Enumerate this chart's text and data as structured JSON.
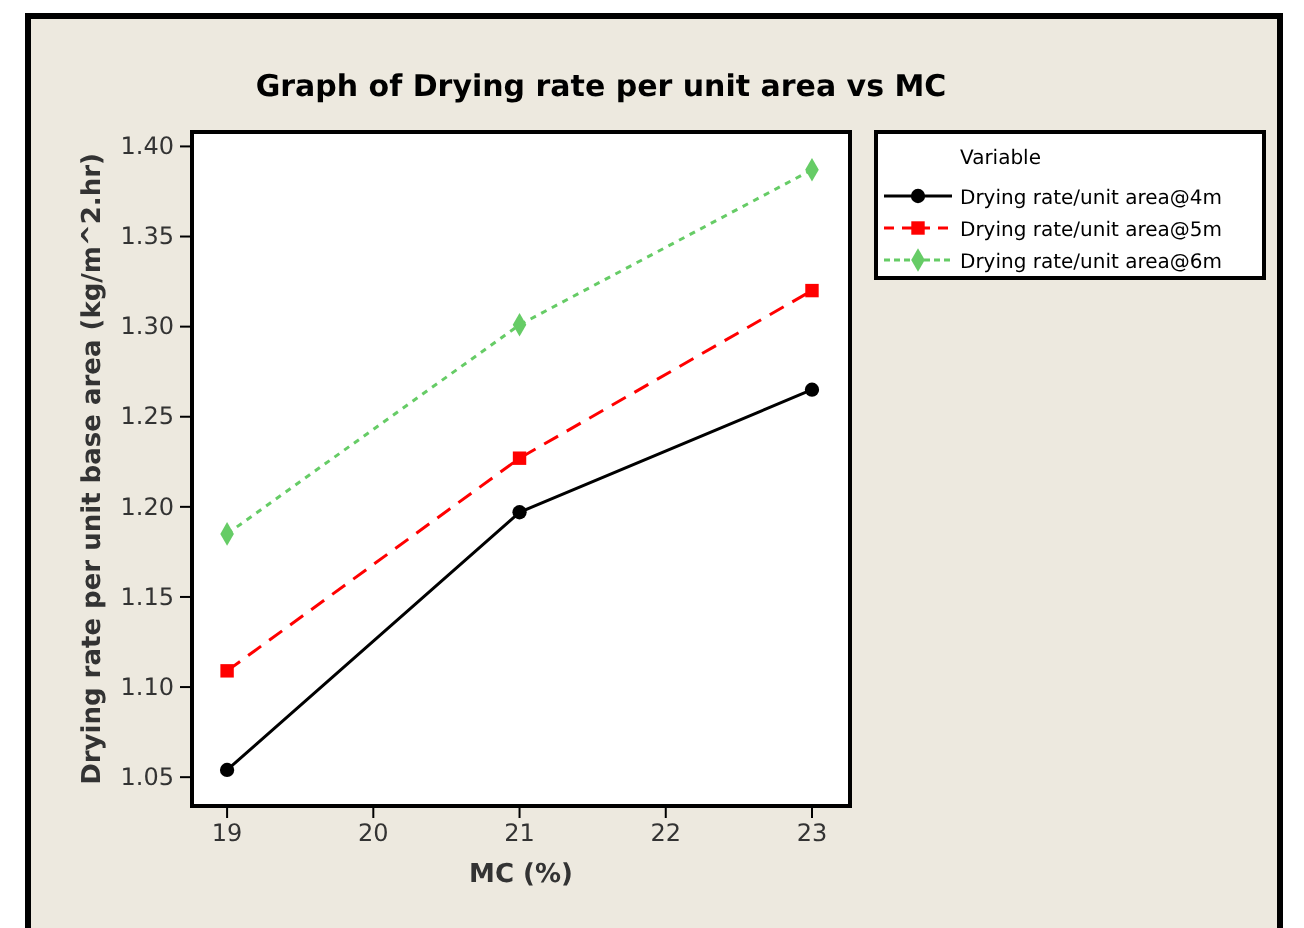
{
  "chart_data": {
    "type": "line",
    "title": "Graph of Drying rate per unit area vs MC",
    "xlabel": "MC (%)",
    "ylabel": "Drying rate per unit base area (kg/m^2.hr)",
    "legend_title": "Variable",
    "x": [
      19,
      21,
      23
    ],
    "xlim": [
      18.76,
      23.26
    ],
    "xticks": [
      19,
      20,
      21,
      22,
      23
    ],
    "ylim": [
      1.034,
      1.408
    ],
    "yticks": [
      {
        "value": 1.05,
        "label": "1.05"
      },
      {
        "value": 1.1,
        "label": "1.10"
      },
      {
        "value": 1.15,
        "label": "1.15"
      },
      {
        "value": 1.2,
        "label": "1.20"
      },
      {
        "value": 1.25,
        "label": "1.25"
      },
      {
        "value": 1.3,
        "label": "1.30"
      },
      {
        "value": 1.35,
        "label": "1.35"
      },
      {
        "value": 1.4,
        "label": "1.40"
      }
    ],
    "legend": "right",
    "grid": false,
    "series": [
      {
        "name": "Drying rate/unit area@4m",
        "color": "#000000",
        "marker": "circle",
        "line_style": "solid",
        "values": [
          1.054,
          1.197,
          1.265
        ]
      },
      {
        "name": "Drying rate/unit area@5m",
        "color": "#ff0000",
        "marker": "square",
        "line_style": "dashed",
        "values": [
          1.109,
          1.227,
          1.32
        ]
      },
      {
        "name": "Drying rate/unit area@6m",
        "color": "#66cc66",
        "marker": "diamond",
        "line_style": "dotted",
        "values": [
          1.185,
          1.301,
          1.387
        ]
      }
    ]
  }
}
